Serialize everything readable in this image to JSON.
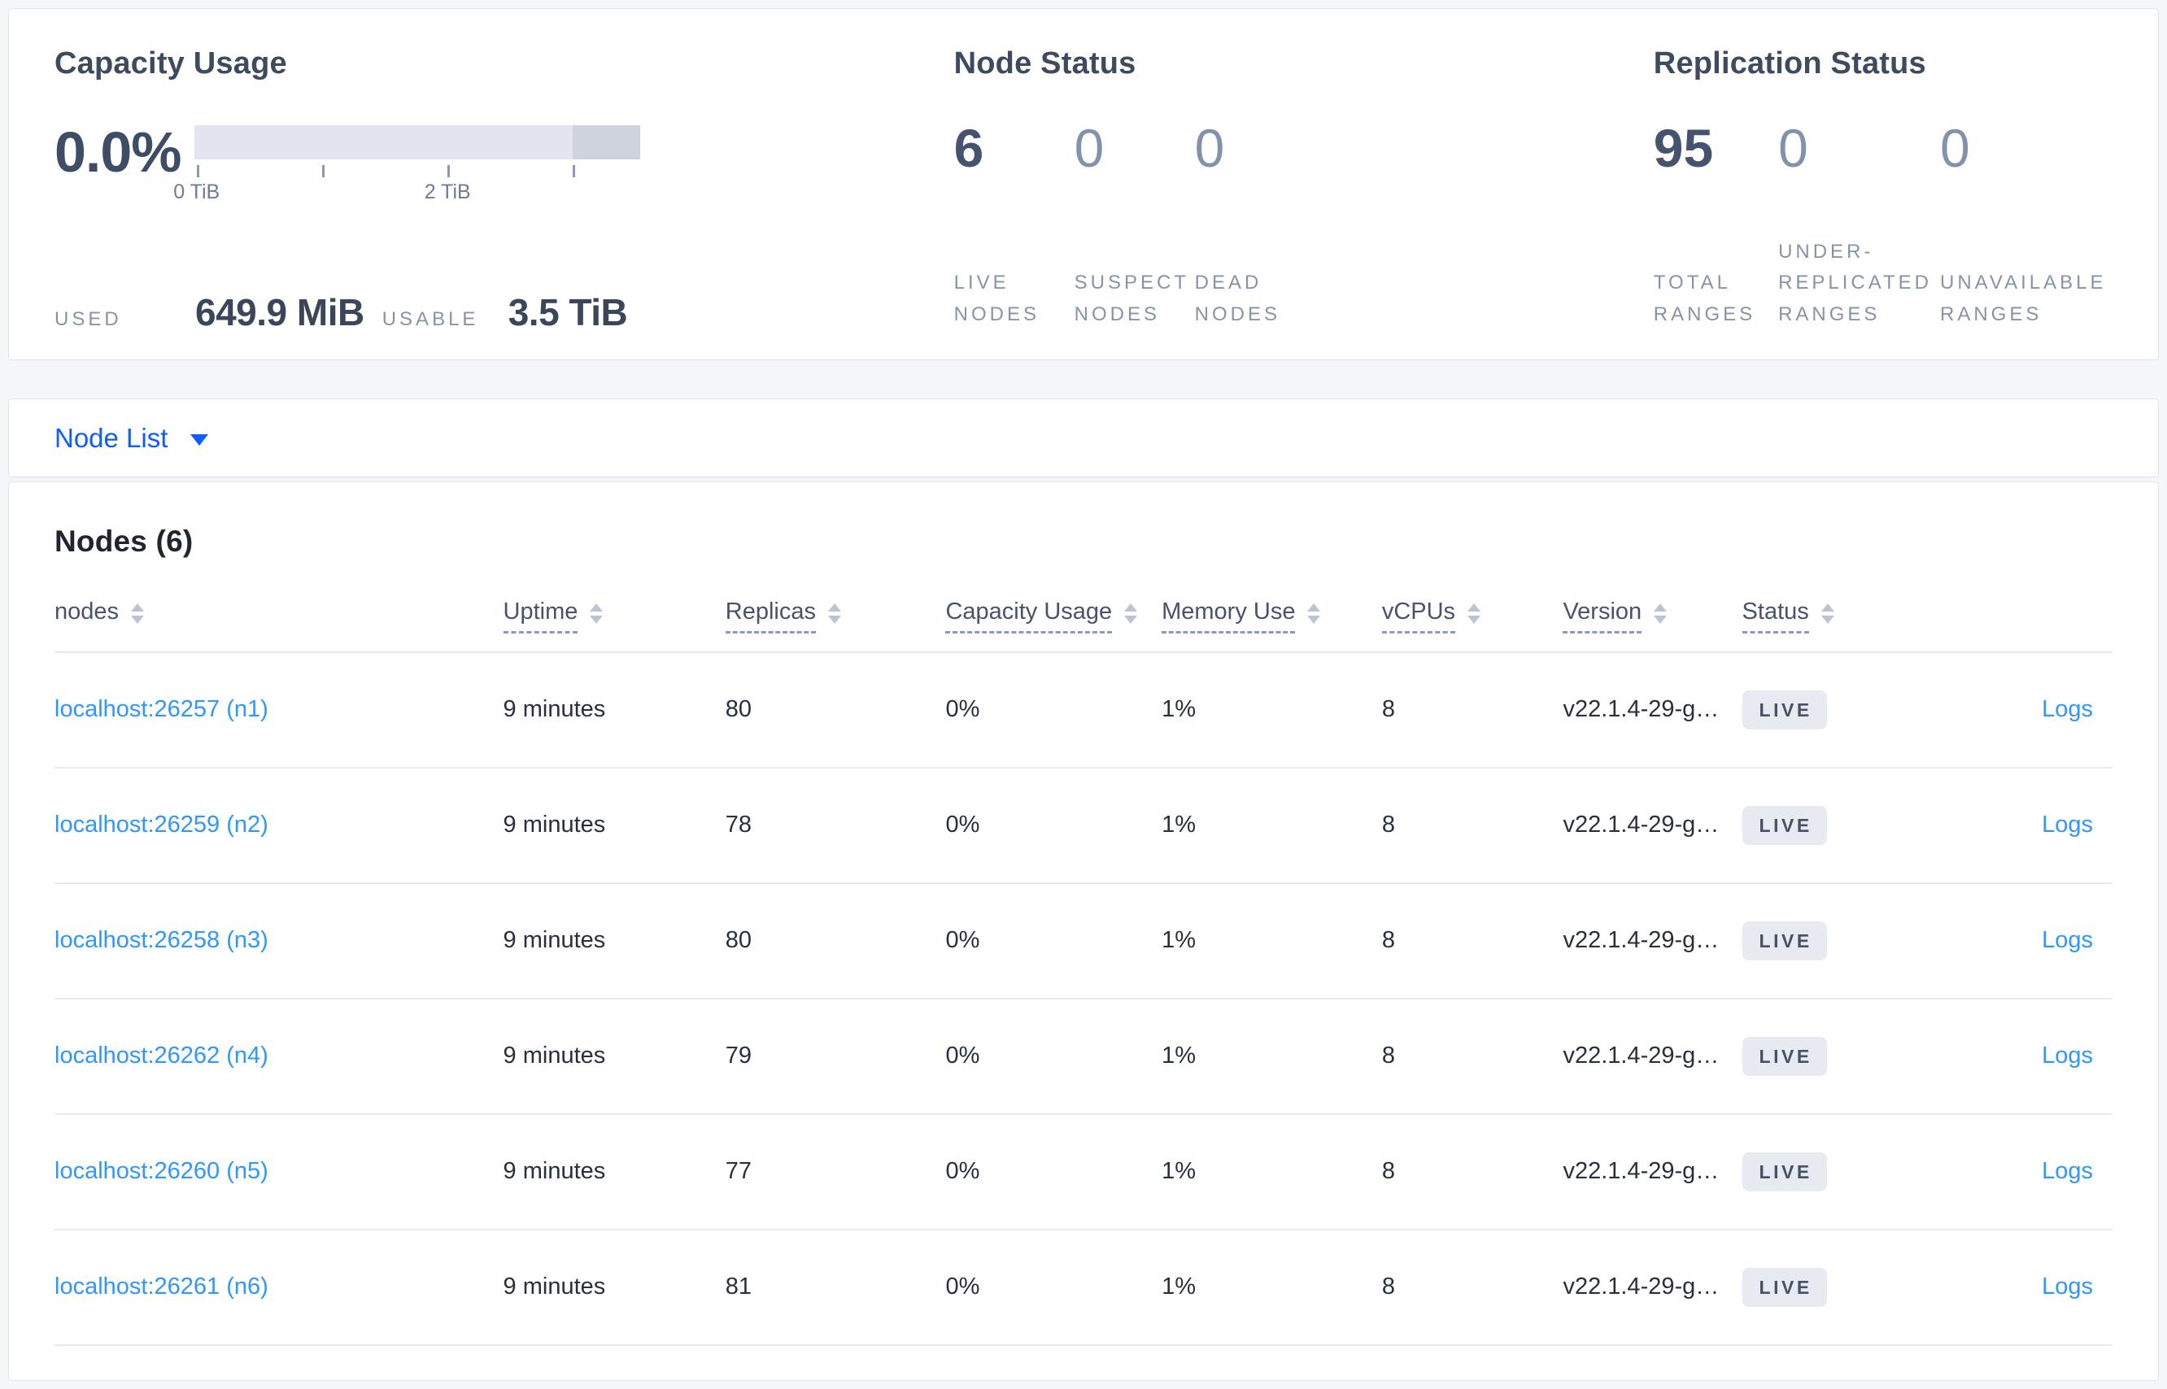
{
  "summary": {
    "capacity": {
      "title": "Capacity Usage",
      "percent": "0.0%",
      "used_label": "USED",
      "used_value": "649.9 MiB",
      "usable_label": "USABLE",
      "usable_value": "3.5 TiB",
      "bar": {
        "dark_fraction_percent": 15.2,
        "tick_positions_percent": [
          0.5,
          28.6,
          56.8,
          84.8
        ],
        "tick_labels": [
          {
            "text": "0 TiB",
            "pos": 0.5
          },
          {
            "text": "2 TiB",
            "pos": 56.8
          }
        ]
      }
    },
    "node_status": {
      "title": "Node Status",
      "stats": [
        {
          "value": "6",
          "label": "LIVE NODES"
        },
        {
          "value": "0",
          "label": "SUSPECT NODES"
        },
        {
          "value": "0",
          "label": "DEAD NODES"
        }
      ]
    },
    "replication_status": {
      "title": "Replication Status",
      "stats": [
        {
          "value": "95",
          "label": "TOTAL RANGES"
        },
        {
          "value": "0",
          "label": "UNDER-REPLICATED RANGES"
        },
        {
          "value": "0",
          "label": "UNAVAILABLE RANGES"
        }
      ]
    }
  },
  "view_selector": {
    "label": "Node List"
  },
  "nodes_section": {
    "heading": "Nodes (6)"
  },
  "table": {
    "columns": [
      {
        "label": "nodes",
        "sortable": true,
        "tooltip_underline": false
      },
      {
        "label": "Uptime",
        "sortable": true,
        "tooltip_underline": true
      },
      {
        "label": "Replicas",
        "sortable": true,
        "tooltip_underline": true
      },
      {
        "label": "Capacity Usage",
        "sortable": true,
        "tooltip_underline": true
      },
      {
        "label": "Memory Use",
        "sortable": true,
        "tooltip_underline": true
      },
      {
        "label": "vCPUs",
        "sortable": true,
        "tooltip_underline": true
      },
      {
        "label": "Version",
        "sortable": true,
        "tooltip_underline": true
      },
      {
        "label": "Status",
        "sortable": true,
        "tooltip_underline": true
      },
      {
        "label": "",
        "sortable": false,
        "tooltip_underline": false
      }
    ],
    "rows": [
      {
        "address": "localhost:26257 (n1)",
        "uptime": "9 minutes",
        "replicas": "80",
        "capacity_usage": "0%",
        "memory_use": "1%",
        "vcpus": "8",
        "version": "v22.1.4-29-g…",
        "status": "LIVE",
        "logs": "Logs"
      },
      {
        "address": "localhost:26259 (n2)",
        "uptime": "9 minutes",
        "replicas": "78",
        "capacity_usage": "0%",
        "memory_use": "1%",
        "vcpus": "8",
        "version": "v22.1.4-29-g…",
        "status": "LIVE",
        "logs": "Logs"
      },
      {
        "address": "localhost:26258 (n3)",
        "uptime": "9 minutes",
        "replicas": "80",
        "capacity_usage": "0%",
        "memory_use": "1%",
        "vcpus": "8",
        "version": "v22.1.4-29-g…",
        "status": "LIVE",
        "logs": "Logs"
      },
      {
        "address": "localhost:26262 (n4)",
        "uptime": "9 minutes",
        "replicas": "79",
        "capacity_usage": "0%",
        "memory_use": "1%",
        "vcpus": "8",
        "version": "v22.1.4-29-g…",
        "status": "LIVE",
        "logs": "Logs"
      },
      {
        "address": "localhost:26260 (n5)",
        "uptime": "9 minutes",
        "replicas": "77",
        "capacity_usage": "0%",
        "memory_use": "1%",
        "vcpus": "8",
        "version": "v22.1.4-29-g…",
        "status": "LIVE",
        "logs": "Logs"
      },
      {
        "address": "localhost:26261 (n6)",
        "uptime": "9 minutes",
        "replicas": "81",
        "capacity_usage": "0%",
        "memory_use": "1%",
        "vcpus": "8",
        "version": "v22.1.4-29-g…",
        "status": "LIVE",
        "logs": "Logs"
      }
    ]
  },
  "colors": {
    "selector_blue": "#0d5ef5",
    "link_blue": "#2f97fb",
    "badge_bg": "#e7ebf1",
    "badge_text": "#475266",
    "bar_light": "#e2e4ee",
    "bar_dark": "#cfd3dd",
    "page_bg": "#f4f6f9"
  }
}
